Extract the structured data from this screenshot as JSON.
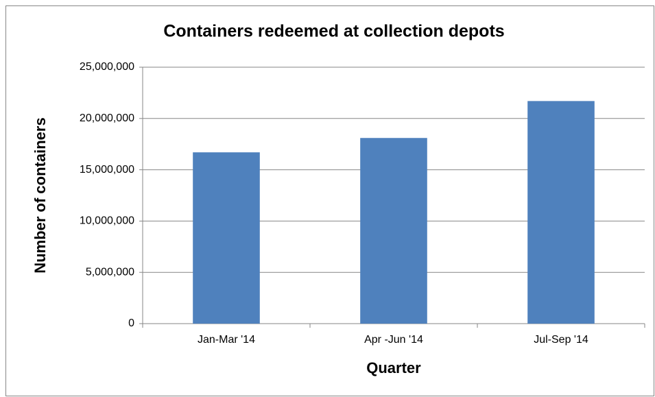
{
  "chart_data": {
    "type": "bar",
    "title": "Containers redeemed at collection depots",
    "x_label": "Quarter",
    "y_label": "Number of containers",
    "categories": [
      "Jan-Mar '14",
      "Apr -Jun '14",
      "Jul-Sep '14"
    ],
    "values": [
      16700000,
      18100000,
      21700000
    ],
    "color": "#4f81bd",
    "ylim": [
      0,
      25000000
    ],
    "yticks": [
      0,
      {
        "value": 5000000,
        "label": "5,000,000"
      },
      {
        "value": 10000000,
        "label": "10,000,000"
      },
      {
        "value": 15000000,
        "label": "15,000,000"
      },
      {
        "value": 20000000,
        "label": "20,000,000"
      },
      {
        "value": 25000000,
        "label": "25,000,000"
      }
    ],
    "grid": true
  }
}
